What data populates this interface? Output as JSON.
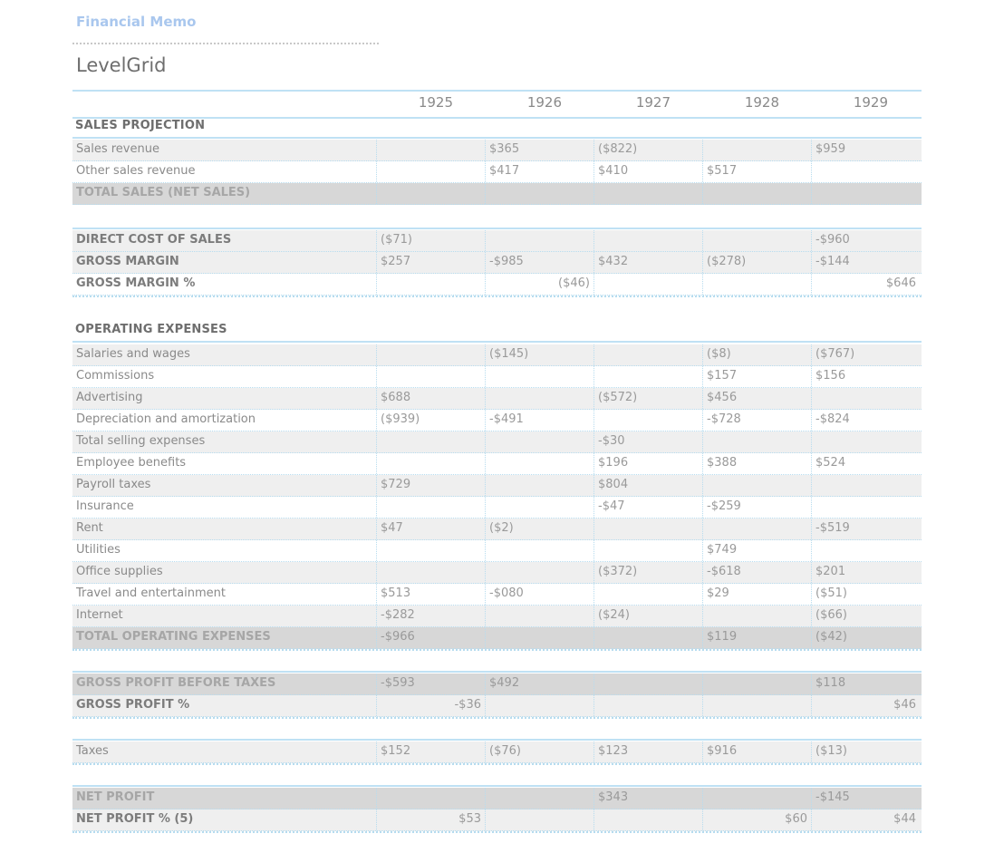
{
  "memo_title": "Financial Memo",
  "sheet_title": "LevelGrid",
  "years": [
    "1925",
    "1926",
    "1927",
    "1928",
    "1929"
  ],
  "sections": {
    "sales": "SALES PROJECTION",
    "operating": "OPERATING EXPENSES"
  },
  "rows": {
    "sales_revenue": {
      "label": "Sales revenue",
      "values": [
        "",
        "$365",
        "($822)",
        "",
        "$959"
      ]
    },
    "other_sales_revenue": {
      "label": "Other sales revenue",
      "values": [
        "",
        "$417",
        "$410",
        "$517",
        ""
      ]
    },
    "total_sales": {
      "label": "TOTAL SALES (NET SALES)",
      "values": [
        "",
        "",
        "",
        "",
        ""
      ]
    },
    "direct_cost": {
      "label": "DIRECT COST OF SALES",
      "values": [
        "($71)",
        "",
        "",
        "",
        "-$960"
      ]
    },
    "gross_margin": {
      "label": "GROSS MARGIN",
      "values": [
        "$257",
        "-$985",
        "$432",
        "($278)",
        "-$144"
      ]
    },
    "gross_margin_pct": {
      "label": "GROSS MARGIN %",
      "values": [
        "",
        "($46)",
        "",
        "",
        "$646"
      ]
    },
    "salaries": {
      "label": "Salaries and wages",
      "values": [
        "",
        "($145)",
        "",
        "($8)",
        "($767)"
      ]
    },
    "commissions": {
      "label": "Commissions",
      "values": [
        "",
        "",
        "",
        "$157",
        "$156"
      ]
    },
    "advertising": {
      "label": "Advertising",
      "values": [
        "$688",
        "",
        "($572)",
        "$456",
        ""
      ]
    },
    "depreciation": {
      "label": "Depreciation and amortization",
      "values": [
        "($939)",
        "-$491",
        "",
        "-$728",
        "-$824"
      ]
    },
    "total_selling": {
      "label": "Total selling expenses",
      "values": [
        "",
        "",
        "-$30",
        "",
        ""
      ]
    },
    "employee_benefits": {
      "label": "Employee benefits",
      "values": [
        "",
        "",
        "$196",
        "$388",
        "$524"
      ]
    },
    "payroll_taxes": {
      "label": "Payroll taxes",
      "values": [
        "$729",
        "",
        "$804",
        "",
        ""
      ]
    },
    "insurance": {
      "label": "Insurance",
      "values": [
        "",
        "",
        "-$47",
        "-$259",
        ""
      ]
    },
    "rent": {
      "label": "Rent",
      "values": [
        "$47",
        "($2)",
        "",
        "",
        "-$519"
      ]
    },
    "utilities": {
      "label": "Utilities",
      "values": [
        "",
        "",
        "",
        "$749",
        ""
      ]
    },
    "office_supplies": {
      "label": "Office supplies",
      "values": [
        "",
        "",
        "($372)",
        "-$618",
        "$201"
      ]
    },
    "travel": {
      "label": "Travel and entertainment",
      "values": [
        "$513",
        "-$080",
        "",
        "$29",
        "($51)"
      ]
    },
    "internet": {
      "label": "Internet",
      "values": [
        "-$282",
        "",
        "($24)",
        "",
        "($66)"
      ]
    },
    "total_operating": {
      "label": "TOTAL OPERATING EXPENSES",
      "values": [
        "-$966",
        "",
        "",
        "$119",
        "($42)"
      ]
    },
    "gross_profit": {
      "label": "GROSS PROFIT BEFORE TAXES",
      "values": [
        "-$593",
        "$492",
        "",
        "",
        "$118"
      ]
    },
    "gross_profit_pct": {
      "label": "GROSS PROFIT %",
      "values": [
        "-$36",
        "",
        "",
        "",
        "$46"
      ]
    },
    "taxes": {
      "label": "Taxes",
      "values": [
        "$152",
        "($76)",
        "$123",
        "$916",
        "($13)"
      ]
    },
    "net_profit": {
      "label": "NET PROFIT",
      "values": [
        "",
        "",
        "$343",
        "",
        "-$145"
      ]
    },
    "net_profit_pct": {
      "label": "NET PROFIT % (5)",
      "values": [
        "$53",
        "",
        "",
        "$60",
        "$44"
      ]
    }
  }
}
